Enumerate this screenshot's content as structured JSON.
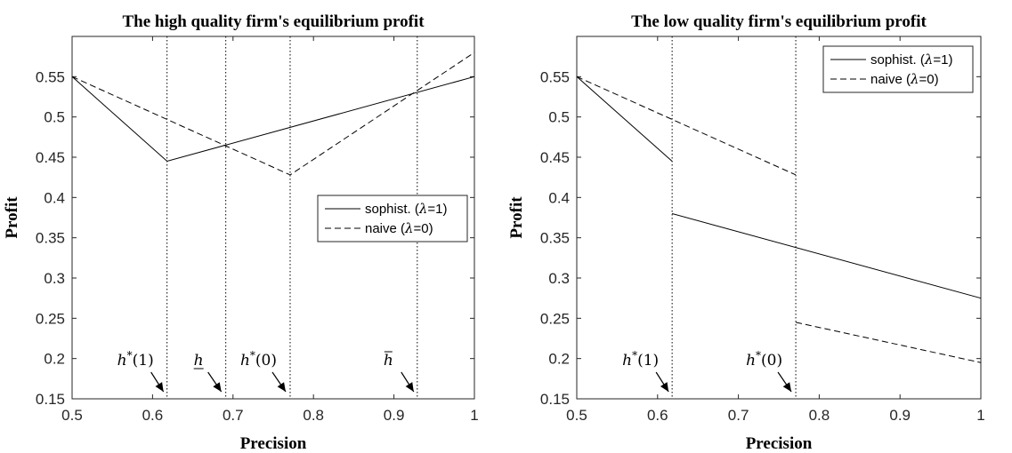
{
  "chart_data": [
    {
      "type": "line",
      "title": "The high quality firm's equilibrium profit",
      "xlabel": "Precision",
      "ylabel": "Profit",
      "xlim": [
        0.5,
        1.0
      ],
      "ylim": [
        0.15,
        0.6
      ],
      "xticks": [
        0.5,
        0.6,
        0.7,
        0.8,
        0.9,
        1
      ],
      "xtick_labels": [
        "0.5",
        "0.6",
        "0.7",
        "0.8",
        "0.9",
        "1"
      ],
      "yticks": [
        0.15,
        0.2,
        0.25,
        0.3,
        0.35,
        0.4,
        0.45,
        0.5,
        0.55
      ],
      "ytick_labels": [
        "0.15",
        "0.2",
        "0.25",
        "0.3",
        "0.35",
        "0.4",
        "0.45",
        "0.5",
        "0.55"
      ],
      "legend": {
        "position": "center-right"
      },
      "series": [
        {
          "name": "sophist. (λ=1)",
          "label_prefix": "sophist. (",
          "label_sym": "λ",
          "label_suffix": "=1)",
          "style": "solid",
          "segments": [
            {
              "x": [
                0.5,
                0.618,
                1.0
              ],
              "y": [
                0.55,
                0.445,
                0.55
              ]
            }
          ]
        },
        {
          "name": "naive (λ=0)",
          "label_prefix": "naive (",
          "label_sym": "λ",
          "label_suffix": "=0)",
          "style": "dashed",
          "segments": [
            {
              "x": [
                0.5,
                0.771,
                1.0
              ],
              "y": [
                0.55,
                0.428,
                0.58
              ]
            }
          ]
        }
      ],
      "vlines": [
        0.618,
        0.691,
        0.771,
        0.929
      ],
      "annotations": [
        {
          "name": "h-star-1",
          "text": "h*(1)",
          "x": 0.618
        },
        {
          "name": "h-underline",
          "text": "h",
          "x": 0.691,
          "decoration": "underline"
        },
        {
          "name": "h-star-0",
          "text": "h*(0)",
          "x": 0.771
        },
        {
          "name": "h-bar",
          "text": "h",
          "x": 0.929,
          "decoration": "overline"
        }
      ]
    },
    {
      "type": "line",
      "title": "The low quality firm's equilibrium profit",
      "xlabel": "Precision",
      "ylabel": "Profit",
      "xlim": [
        0.5,
        1.0
      ],
      "ylim": [
        0.15,
        0.6
      ],
      "xticks": [
        0.5,
        0.6,
        0.7,
        0.8,
        0.9,
        1
      ],
      "xtick_labels": [
        "0.5",
        "0.6",
        "0.7",
        "0.8",
        "0.9",
        "1"
      ],
      "yticks": [
        0.15,
        0.2,
        0.25,
        0.3,
        0.35,
        0.4,
        0.45,
        0.5,
        0.55
      ],
      "ytick_labels": [
        "0.15",
        "0.2",
        "0.25",
        "0.3",
        "0.35",
        "0.4",
        "0.45",
        "0.5",
        "0.55"
      ],
      "legend": {
        "position": "top-right"
      },
      "series": [
        {
          "name": "sophist. (λ=1)",
          "label_prefix": "sophist. (",
          "label_sym": "λ",
          "label_suffix": "=1)",
          "style": "solid",
          "segments": [
            {
              "x": [
                0.5,
                0.618
              ],
              "y": [
                0.55,
                0.445
              ]
            },
            {
              "x": [
                0.618,
                1.0
              ],
              "y": [
                0.38,
                0.275
              ]
            }
          ]
        },
        {
          "name": "naive (λ=0)",
          "label_prefix": "naive (",
          "label_sym": "λ",
          "label_suffix": "=0)",
          "style": "dashed",
          "segments": [
            {
              "x": [
                0.5,
                0.771
              ],
              "y": [
                0.55,
                0.428
              ]
            },
            {
              "x": [
                0.771,
                1.0
              ],
              "y": [
                0.245,
                0.195
              ]
            }
          ]
        }
      ],
      "vlines": [
        0.618,
        0.771
      ],
      "annotations": [
        {
          "name": "h-star-1",
          "text": "h*(1)",
          "x": 0.618
        },
        {
          "name": "h-star-0",
          "text": "h*(0)",
          "x": 0.771
        }
      ]
    }
  ]
}
